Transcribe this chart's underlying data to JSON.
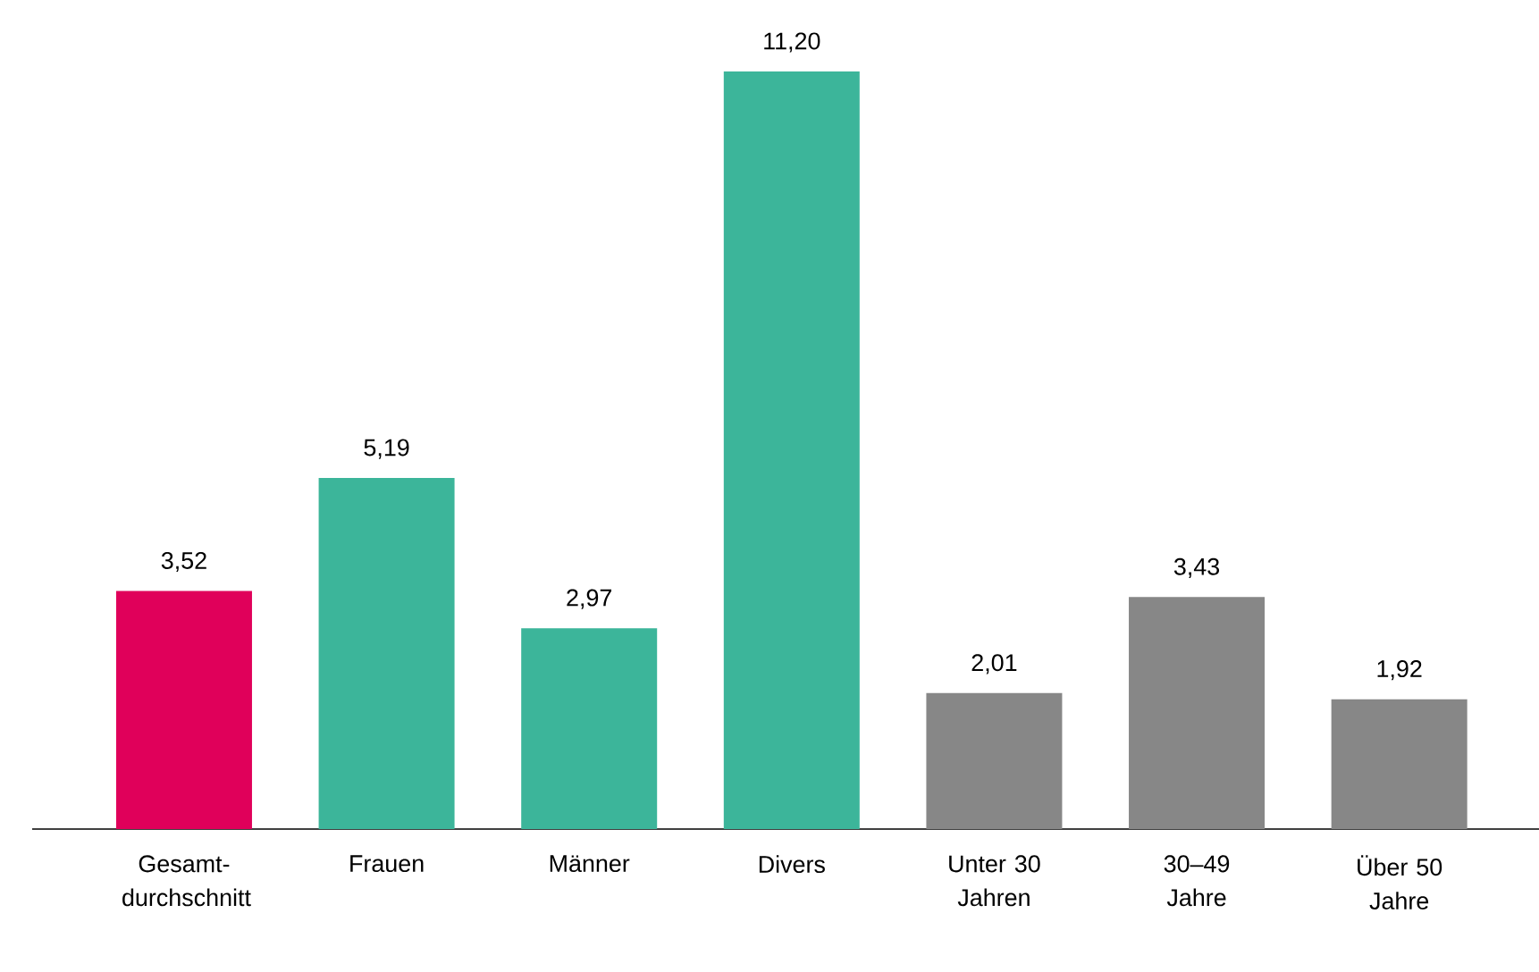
{
  "chart_data": {
    "type": "bar",
    "categories": [
      "Gesamt-durchschnitt",
      "Frauen",
      "Männer",
      "Divers",
      "Unter 30 Jahren",
      "30–49 Jahre",
      "Über 50 Jahre"
    ],
    "values": [
      3.52,
      5.19,
      2.97,
      11.2,
      2.01,
      3.43,
      1.92
    ],
    "value_labels": [
      "3,52",
      "5,19",
      "2,97",
      "11,20",
      "2,01",
      "3,43",
      "1,92"
    ],
    "colors": [
      "#e0005a",
      "#3cb59a",
      "#3cb59a",
      "#3cb59a",
      "#878787",
      "#878787",
      "#878787"
    ]
  }
}
